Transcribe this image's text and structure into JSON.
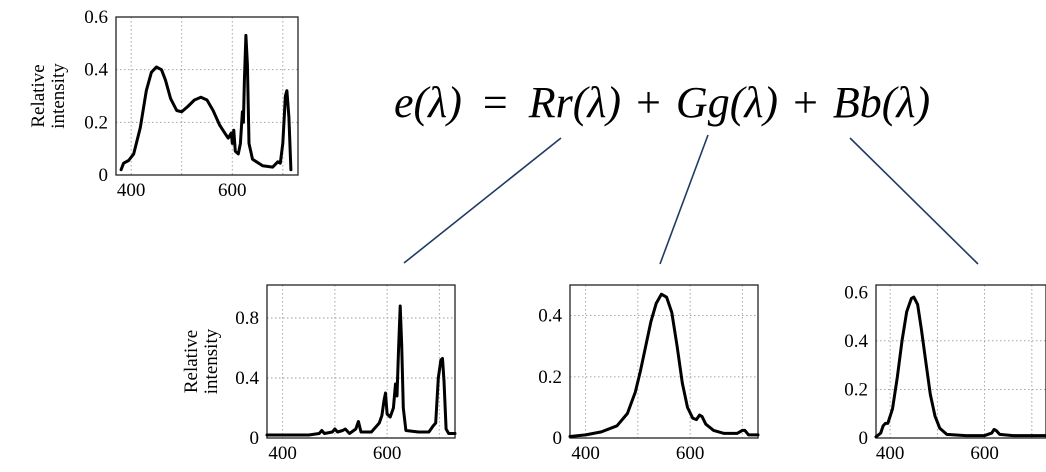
{
  "equation": {
    "lhs": "e(λ)",
    "eq": "=",
    "t1": "Rr(λ)",
    "p1": "+",
    "t2": "Gg(λ)",
    "p2": "+",
    "t3": "Bb(λ)"
  },
  "colors": {
    "curve": "#000000",
    "connector": "#1f3b63",
    "grid": "#9a9a9a"
  },
  "chart_data": [
    {
      "id": "total",
      "type": "line",
      "ylabel": [
        "Relative",
        "intensity"
      ],
      "xlim": [
        370,
        730
      ],
      "ylim": [
        0,
        0.6
      ],
      "xticks": [
        400,
        600
      ],
      "yticks": [
        {
          "v": 0,
          "t": "0"
        },
        {
          "v": 0.2,
          "t": "0.2"
        },
        {
          "v": 0.4,
          "t": "0.4"
        },
        {
          "v": 0.6,
          "t": "0.6"
        }
      ],
      "xgrid": [
        400,
        500,
        600,
        700
      ],
      "ygrid": [
        0.2,
        0.4
      ],
      "points": [
        [
          380,
          0.02
        ],
        [
          385,
          0.045
        ],
        [
          395,
          0.055
        ],
        [
          405,
          0.08
        ],
        [
          418,
          0.18
        ],
        [
          430,
          0.32
        ],
        [
          440,
          0.39
        ],
        [
          450,
          0.41
        ],
        [
          460,
          0.4
        ],
        [
          468,
          0.36
        ],
        [
          478,
          0.29
        ],
        [
          490,
          0.245
        ],
        [
          500,
          0.24
        ],
        [
          512,
          0.26
        ],
        [
          525,
          0.285
        ],
        [
          538,
          0.295
        ],
        [
          550,
          0.285
        ],
        [
          562,
          0.245
        ],
        [
          575,
          0.19
        ],
        [
          585,
          0.16
        ],
        [
          592,
          0.14
        ],
        [
          595,
          0.15
        ],
        [
          598,
          0.16
        ],
        [
          600,
          0.12
        ],
        [
          603,
          0.17
        ],
        [
          606,
          0.09
        ],
        [
          612,
          0.08
        ],
        [
          616,
          0.12
        ],
        [
          620,
          0.24
        ],
        [
          622,
          0.2
        ],
        [
          624,
          0.36
        ],
        [
          627,
          0.53
        ],
        [
          630,
          0.42
        ],
        [
          633,
          0.12
        ],
        [
          640,
          0.06
        ],
        [
          660,
          0.035
        ],
        [
          680,
          0.03
        ],
        [
          690,
          0.05
        ],
        [
          695,
          0.045
        ],
        [
          700,
          0.12
        ],
        [
          705,
          0.3
        ],
        [
          708,
          0.32
        ],
        [
          712,
          0.22
        ],
        [
          716,
          0.02
        ]
      ]
    },
    {
      "id": "red",
      "type": "line",
      "ylabel": [
        "Relative",
        "intensity"
      ],
      "xlim": [
        370,
        730
      ],
      "ylim": [
        0,
        1.02
      ],
      "xticks": [
        400,
        600
      ],
      "yticks": [
        {
          "v": 0,
          "t": "0"
        },
        {
          "v": 0.4,
          "t": "0.4"
        },
        {
          "v": 0.8,
          "t": "0.8"
        }
      ],
      "xgrid": [
        400,
        500,
        600,
        700
      ],
      "ygrid": [
        0.4,
        0.8
      ],
      "points": [
        [
          370,
          0.02
        ],
        [
          400,
          0.02
        ],
        [
          450,
          0.02
        ],
        [
          470,
          0.03
        ],
        [
          475,
          0.05
        ],
        [
          480,
          0.03
        ],
        [
          495,
          0.04
        ],
        [
          500,
          0.06
        ],
        [
          505,
          0.04
        ],
        [
          515,
          0.05
        ],
        [
          520,
          0.06
        ],
        [
          528,
          0.03
        ],
        [
          540,
          0.06
        ],
        [
          545,
          0.11
        ],
        [
          550,
          0.04
        ],
        [
          570,
          0.04
        ],
        [
          585,
          0.1
        ],
        [
          590,
          0.15
        ],
        [
          594,
          0.25
        ],
        [
          597,
          0.3
        ],
        [
          600,
          0.16
        ],
        [
          606,
          0.14
        ],
        [
          612,
          0.2
        ],
        [
          616,
          0.36
        ],
        [
          619,
          0.28
        ],
        [
          622,
          0.6
        ],
        [
          625,
          0.88
        ],
        [
          628,
          0.62
        ],
        [
          631,
          0.2
        ],
        [
          636,
          0.05
        ],
        [
          660,
          0.04
        ],
        [
          680,
          0.04
        ],
        [
          688,
          0.08
        ],
        [
          693,
          0.1
        ],
        [
          698,
          0.4
        ],
        [
          703,
          0.52
        ],
        [
          706,
          0.53
        ],
        [
          709,
          0.38
        ],
        [
          713,
          0.06
        ],
        [
          718,
          0.03
        ],
        [
          730,
          0.03
        ]
      ]
    },
    {
      "id": "green",
      "type": "line",
      "ylabel": [],
      "xlim": [
        370,
        730
      ],
      "ylim": [
        0,
        0.5
      ],
      "xticks": [
        400,
        600
      ],
      "yticks": [
        {
          "v": 0,
          "t": "0"
        },
        {
          "v": 0.2,
          "t": "0.2"
        },
        {
          "v": 0.4,
          "t": "0.4"
        }
      ],
      "xgrid": [
        400,
        500,
        600,
        700
      ],
      "ygrid": [
        0.2,
        0.4
      ],
      "points": [
        [
          370,
          0.005
        ],
        [
          400,
          0.01
        ],
        [
          430,
          0.02
        ],
        [
          460,
          0.04
        ],
        [
          480,
          0.08
        ],
        [
          495,
          0.15
        ],
        [
          505,
          0.22
        ],
        [
          515,
          0.3
        ],
        [
          525,
          0.38
        ],
        [
          535,
          0.44
        ],
        [
          545,
          0.47
        ],
        [
          555,
          0.46
        ],
        [
          565,
          0.41
        ],
        [
          575,
          0.3
        ],
        [
          585,
          0.18
        ],
        [
          595,
          0.1
        ],
        [
          605,
          0.065
        ],
        [
          612,
          0.06
        ],
        [
          618,
          0.075
        ],
        [
          623,
          0.07
        ],
        [
          630,
          0.045
        ],
        [
          645,
          0.025
        ],
        [
          665,
          0.015
        ],
        [
          690,
          0.015
        ],
        [
          700,
          0.025
        ],
        [
          705,
          0.025
        ],
        [
          712,
          0.01
        ],
        [
          730,
          0.01
        ]
      ]
    },
    {
      "id": "blue",
      "type": "line",
      "ylabel": [],
      "xlim": [
        370,
        730
      ],
      "ylim": [
        0,
        0.63
      ],
      "xticks": [
        400,
        600
      ],
      "yticks": [
        {
          "v": 0,
          "t": "0"
        },
        {
          "v": 0.2,
          "t": "0.2"
        },
        {
          "v": 0.4,
          "t": "0.4"
        },
        {
          "v": 0.6,
          "t": "0.6"
        }
      ],
      "xgrid": [
        400,
        500,
        600,
        700
      ],
      "ygrid": [
        0.2,
        0.4
      ],
      "points": [
        [
          370,
          0.005
        ],
        [
          380,
          0.02
        ],
        [
          385,
          0.05
        ],
        [
          390,
          0.06
        ],
        [
          395,
          0.06
        ],
        [
          405,
          0.12
        ],
        [
          415,
          0.25
        ],
        [
          425,
          0.4
        ],
        [
          435,
          0.52
        ],
        [
          445,
          0.575
        ],
        [
          450,
          0.58
        ],
        [
          458,
          0.55
        ],
        [
          466,
          0.45
        ],
        [
          475,
          0.32
        ],
        [
          485,
          0.18
        ],
        [
          495,
          0.09
        ],
        [
          505,
          0.04
        ],
        [
          520,
          0.015
        ],
        [
          560,
          0.01
        ],
        [
          600,
          0.01
        ],
        [
          615,
          0.02
        ],
        [
          620,
          0.035
        ],
        [
          625,
          0.03
        ],
        [
          632,
          0.015
        ],
        [
          660,
          0.01
        ],
        [
          730,
          0.01
        ]
      ]
    }
  ]
}
